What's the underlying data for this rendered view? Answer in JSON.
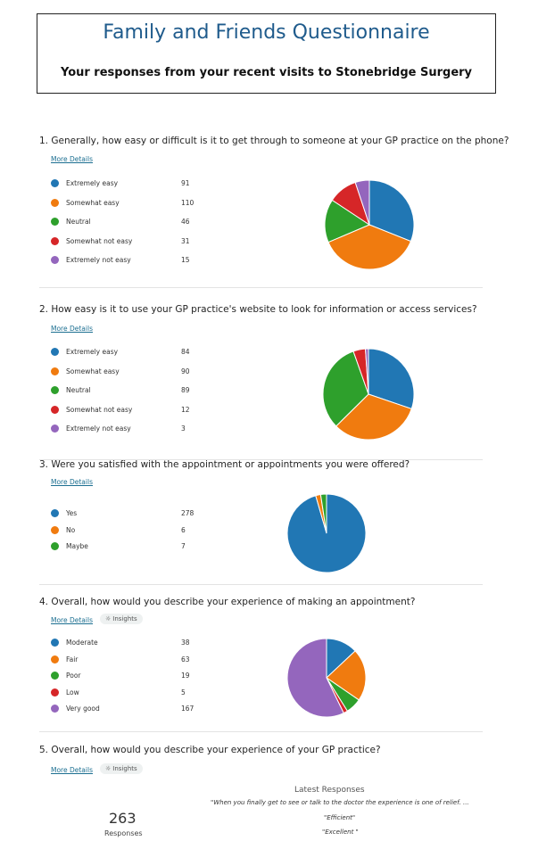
{
  "header": {
    "title": "Family and Friends Questionnaire",
    "subtitle": "Your responses from your recent visits to Stonebridge Surgery"
  },
  "common": {
    "more_details": "More Details",
    "insights": "Insights"
  },
  "colors": {
    "blue": "#2177b4",
    "orange": "#f07b0f",
    "green": "#2ea02c",
    "red": "#d62628",
    "purple": "#9466bd"
  },
  "questions": [
    {
      "text": "1. Generally, how easy or difficult is it to get through to someone at your GP practice on the phone?",
      "options": [
        {
          "label": "Extremely easy",
          "count": 91,
          "color": "#2177b4"
        },
        {
          "label": "Somewhat easy",
          "count": 110,
          "color": "#f07b0f"
        },
        {
          "label": "Neutral",
          "count": 46,
          "color": "#2ea02c"
        },
        {
          "label": "Somewhat not easy",
          "count": 31,
          "color": "#d62628"
        },
        {
          "label": "Extremely not easy",
          "count": 15,
          "color": "#9466bd"
        }
      ]
    },
    {
      "text": "2. How easy is it to use your GP practice's website to look for information or access services?",
      "options": [
        {
          "label": "Extremely easy",
          "count": 84,
          "color": "#2177b4"
        },
        {
          "label": "Somewhat easy",
          "count": 90,
          "color": "#f07b0f"
        },
        {
          "label": "Neutral",
          "count": 89,
          "color": "#2ea02c"
        },
        {
          "label": "Somewhat not easy",
          "count": 12,
          "color": "#d62628"
        },
        {
          "label": "Extremely not easy",
          "count": 3,
          "color": "#9466bd"
        }
      ]
    },
    {
      "text": "3. Were you satisfied with the appointment or appointments you were offered?",
      "options": [
        {
          "label": "Yes",
          "count": 278,
          "color": "#2177b4"
        },
        {
          "label": "No",
          "count": 6,
          "color": "#f07b0f"
        },
        {
          "label": "Maybe",
          "count": 7,
          "color": "#2ea02c"
        }
      ]
    },
    {
      "text": "4. Overall, how would you describe your experience of making an appointment?",
      "options": [
        {
          "label": "Moderate",
          "count": 38,
          "color": "#2177b4"
        },
        {
          "label": "Fair",
          "count": 63,
          "color": "#f07b0f"
        },
        {
          "label": "Poor",
          "count": 19,
          "color": "#2ea02c"
        },
        {
          "label": "Low",
          "count": 5,
          "color": "#d62628"
        },
        {
          "label": "Very good",
          "count": 167,
          "color": "#9466bd"
        }
      ]
    },
    {
      "text": "5. Overall, how would you describe your experience of your GP practice?",
      "responses_count": "263",
      "responses_label": "Responses",
      "latest_title": "Latest Responses",
      "latest": [
        "\"When you finally get to see or talk to the doctor the experience is one of relief. ...",
        "\"Efficient\"",
        "\"Excellent \""
      ]
    }
  ]
}
